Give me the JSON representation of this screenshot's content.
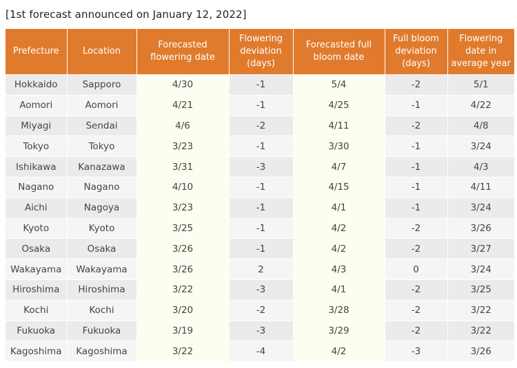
{
  "caption": "[1st forecast announced on January 12, 2022]",
  "headers": [
    "Prefecture",
    "Location",
    "Forecasted flowering date",
    "Flowering deviation (days)",
    "Forecasted full bloom date",
    "Full bloom deviation (days)",
    "Flowering date in average year"
  ],
  "rows": [
    [
      "Hokkaido",
      "Sapporo",
      "4/30",
      "-1",
      "5/4",
      "-2",
      "5/1"
    ],
    [
      "Aomori",
      "Aomori",
      "4/21",
      "-1",
      "4/25",
      "-1",
      "4/22"
    ],
    [
      "Miyagi",
      "Sendai",
      "4/6",
      "-2",
      "4/11",
      "-2",
      "4/8"
    ],
    [
      "Tokyo",
      "Tokyo",
      "3/23",
      "-1",
      "3/30",
      "-1",
      "3/24"
    ],
    [
      "Ishikawa",
      "Kanazawa",
      "3/31",
      "-3",
      "4/7",
      "-1",
      "4/3"
    ],
    [
      "Nagano",
      "Nagano",
      "4/10",
      "-1",
      "4/15",
      "-1",
      "4/11"
    ],
    [
      "Aichi",
      "Nagoya",
      "3/23",
      "-1",
      "4/1",
      "-1",
      "3/24"
    ],
    [
      "Kyoto",
      "Kyoto",
      "3/25",
      "-1",
      "4/2",
      "-2",
      "3/26"
    ],
    [
      "Osaka",
      "Osaka",
      "3/26",
      "-1",
      "4/2",
      "-2",
      "3/27"
    ],
    [
      "Wakayama",
      "Wakayama",
      "3/26",
      "2",
      "4/3",
      "0",
      "3/24"
    ],
    [
      "Hiroshima",
      "Hiroshima",
      "3/22",
      "-3",
      "4/1",
      "-2",
      "3/25"
    ],
    [
      "Kochi",
      "Kochi",
      "3/20",
      "-2",
      "3/28",
      "-2",
      "3/22"
    ],
    [
      "Fukuoka",
      "Fukuoka",
      "3/19",
      "-3",
      "3/29",
      "-2",
      "3/22"
    ],
    [
      "Kagoshima",
      "Kagoshima",
      "3/22",
      "-4",
      "4/2",
      "-3",
      "3/26"
    ]
  ],
  "colors": {
    "header_bg": "#e07b2e",
    "header_text": "#ffffff",
    "cell_gray": "#ebebeb",
    "cell_cream": "#fdfdf0",
    "cell_light": "#f5f5f5"
  }
}
